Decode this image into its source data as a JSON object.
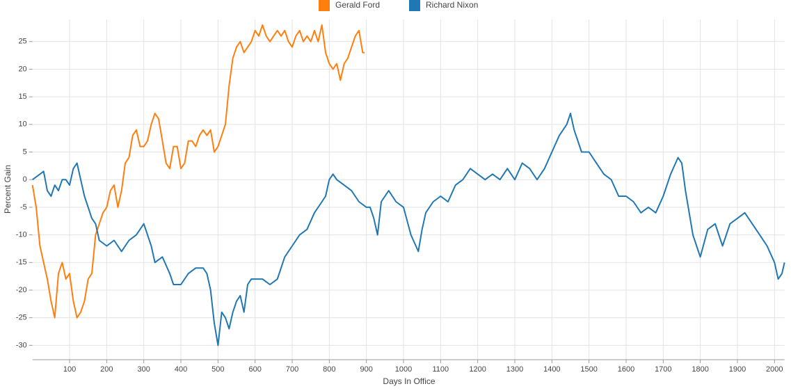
{
  "chart_data": {
    "type": "line",
    "x_label": "Days In Office",
    "y_label": "Percent Gain",
    "xlim": [
      0,
      2027
    ],
    "ylim": [
      -32.6,
      29
    ],
    "xticks": [
      100,
      200,
      300,
      400,
      500,
      600,
      700,
      800,
      900,
      1000,
      1100,
      1200,
      1300,
      1400,
      1500,
      1600,
      1700,
      1800,
      1900,
      2000
    ],
    "yticks": [
      -30,
      -25,
      -20,
      -15,
      -10,
      -5,
      0,
      5,
      10,
      15,
      20,
      25
    ],
    "grid": true,
    "legend": "top",
    "series": [
      {
        "name": "Gerald Ford",
        "color": "#ff7f0e",
        "x": [
          0,
          10,
          20,
          30,
          40,
          50,
          60,
          70,
          80,
          90,
          100,
          110,
          120,
          130,
          140,
          150,
          160,
          170,
          180,
          190,
          200,
          210,
          220,
          230,
          240,
          250,
          260,
          270,
          280,
          290,
          300,
          310,
          320,
          330,
          340,
          350,
          360,
          370,
          380,
          390,
          400,
          410,
          420,
          430,
          440,
          450,
          460,
          470,
          480,
          490,
          500,
          510,
          520,
          530,
          540,
          550,
          560,
          570,
          580,
          590,
          600,
          610,
          620,
          630,
          640,
          650,
          660,
          670,
          680,
          690,
          700,
          710,
          720,
          730,
          740,
          750,
          760,
          770,
          780,
          790,
          800,
          810,
          820,
          830,
          840,
          850,
          860,
          870,
          880,
          890,
          895
        ],
        "values": [
          -1,
          -5,
          -12,
          -15,
          -18,
          -22,
          -25,
          -17,
          -15,
          -18,
          -17,
          -22,
          -25,
          -24,
          -22,
          -18,
          -17,
          -10,
          -8,
          -6,
          -5,
          -2,
          -1,
          -5,
          -2,
          3,
          4,
          8,
          9,
          6,
          6,
          7,
          10,
          12,
          11,
          7,
          3,
          2,
          6,
          6,
          2,
          3,
          7,
          7,
          6,
          8,
          9,
          8,
          9,
          5,
          6,
          8,
          10,
          17,
          22,
          24,
          25,
          23,
          24,
          25,
          27,
          26,
          28,
          26,
          25,
          26,
          27,
          26,
          27,
          25,
          24,
          26,
          27,
          25,
          26,
          25,
          27,
          25,
          28,
          23,
          21,
          20,
          21,
          18,
          21,
          22,
          24,
          26,
          27,
          23,
          23
        ]
      },
      {
        "name": "Richard Nixon",
        "color": "#1f77b4",
        "x": [
          0,
          20,
          30,
          40,
          50,
          60,
          70,
          80,
          90,
          100,
          110,
          120,
          130,
          140,
          150,
          160,
          170,
          180,
          200,
          220,
          240,
          260,
          280,
          300,
          320,
          330,
          350,
          370,
          380,
          400,
          420,
          440,
          460,
          470,
          480,
          490,
          500,
          510,
          520,
          530,
          540,
          550,
          560,
          570,
          580,
          590,
          600,
          620,
          640,
          660,
          680,
          700,
          720,
          740,
          760,
          780,
          790,
          800,
          810,
          820,
          840,
          860,
          880,
          900,
          910,
          920,
          930,
          940,
          960,
          980,
          1000,
          1020,
          1040,
          1050,
          1060,
          1080,
          1100,
          1120,
          1140,
          1160,
          1180,
          1200,
          1220,
          1240,
          1260,
          1280,
          1300,
          1320,
          1340,
          1360,
          1380,
          1400,
          1420,
          1440,
          1450,
          1460,
          1480,
          1500,
          1520,
          1540,
          1560,
          1580,
          1600,
          1620,
          1640,
          1660,
          1680,
          1700,
          1720,
          1740,
          1750,
          1760,
          1780,
          1790,
          1800,
          1820,
          1840,
          1860,
          1880,
          1900,
          1920,
          1940,
          1960,
          1980,
          2000,
          2010,
          2020,
          2027
        ],
        "values": [
          0,
          1,
          1.5,
          -2,
          -3,
          -1,
          -2,
          0,
          0,
          -1,
          2,
          3,
          0,
          -3,
          -5,
          -7,
          -8,
          -11,
          -12,
          -11,
          -13,
          -11,
          -10,
          -8,
          -12,
          -15,
          -14,
          -17,
          -19,
          -19,
          -17,
          -16,
          -16,
          -17,
          -20,
          -26,
          -30,
          -24,
          -25,
          -27,
          -24,
          -22,
          -21,
          -24,
          -19,
          -18,
          -18,
          -18,
          -19,
          -18,
          -14,
          -12,
          -10,
          -9,
          -6,
          -4,
          -3,
          0,
          1,
          0,
          -1,
          -2,
          -4,
          -5,
          -5,
          -7,
          -10,
          -4,
          -2,
          -4,
          -5,
          -10,
          -13,
          -9,
          -6,
          -4,
          -3,
          -4,
          -1,
          0,
          2,
          1,
          0,
          1,
          0,
          2,
          0,
          3,
          2,
          0,
          2,
          5,
          8,
          10,
          12,
          9,
          5,
          5,
          3,
          1,
          0,
          -3,
          -3,
          -4,
          -6,
          -5,
          -6,
          -3,
          1,
          4,
          3,
          -2,
          -10,
          -12,
          -14,
          -9,
          -8,
          -12,
          -8,
          -7,
          -6,
          -8,
          -10,
          -12,
          -15,
          -18,
          -17,
          -15
        ]
      }
    ]
  }
}
